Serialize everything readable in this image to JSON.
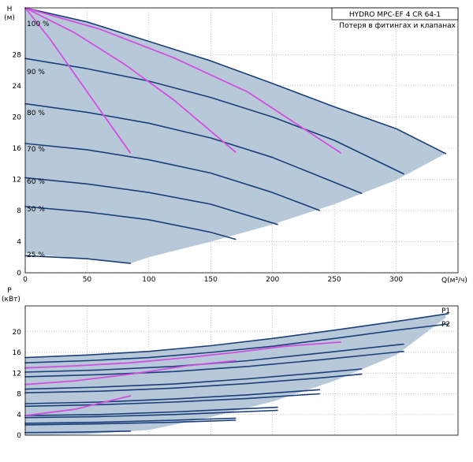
{
  "chart_data": [
    {
      "type": "line",
      "title": "HYDRO MPC-EF 4 CR 64-1",
      "subtitle": "Потеря в фитингах и клапанах",
      "xlabel": "Q(м³/ч)",
      "ylabel": "H",
      "yunit": "(м)",
      "xlim": [
        0,
        350
      ],
      "ylim": [
        0,
        34
      ],
      "xticks": [
        "0",
        "50",
        "100",
        "150",
        "200",
        "250",
        "300"
      ],
      "yticks": [
        "0",
        "4",
        "8",
        "12",
        "16",
        "20",
        "24",
        "28"
      ],
      "grid": true,
      "operating_area": {
        "upper_boundary": [
          [
            0,
            34
          ],
          [
            50,
            32.2
          ],
          [
            100,
            29.7
          ],
          [
            150,
            27.2
          ],
          [
            200,
            24.3
          ],
          [
            250,
            21.3
          ],
          [
            300,
            18.5
          ],
          [
            340,
            15.3
          ]
        ],
        "lower_boundary": [
          [
            340,
            15.3
          ],
          [
            300,
            11.9
          ],
          [
            250,
            8.8
          ],
          [
            200,
            6.2
          ],
          [
            150,
            4
          ],
          [
            100,
            2
          ],
          [
            85,
            1.2
          ],
          [
            60,
            1.6
          ],
          [
            20,
            2.2
          ],
          [
            0,
            2.5
          ]
        ]
      },
      "series": [
        {
          "name": "100 %",
          "color": "#1a3f7a",
          "x": [
            0,
            50,
            100,
            150,
            200,
            250,
            300,
            340
          ],
          "y": [
            34,
            32.2,
            29.7,
            27.2,
            24.3,
            21.3,
            18.5,
            15.3
          ]
        },
        {
          "name": "90 %",
          "color": "#1a3f7a",
          "x": [
            0,
            50,
            100,
            150,
            200,
            250,
            306
          ],
          "y": [
            27.5,
            26.2,
            24.6,
            22.5,
            20,
            17,
            12.7
          ]
        },
        {
          "name": "80 %",
          "color": "#1a3f7a",
          "x": [
            0,
            50,
            100,
            150,
            200,
            272
          ],
          "y": [
            21.7,
            20.6,
            19.2,
            17.3,
            14.8,
            10.2
          ]
        },
        {
          "name": "70 %",
          "color": "#1a3f7a",
          "x": [
            0,
            50,
            100,
            150,
            200,
            238
          ],
          "y": [
            16.6,
            15.8,
            14.5,
            12.8,
            10.3,
            8
          ]
        },
        {
          "name": "60 %",
          "color": "#1a3f7a",
          "x": [
            0,
            50,
            100,
            150,
            204
          ],
          "y": [
            12.2,
            11.4,
            10.3,
            8.8,
            6.2
          ]
        },
        {
          "name": "50 %",
          "color": "#1a3f7a",
          "x": [
            0,
            50,
            100,
            150,
            170
          ],
          "y": [
            8.5,
            7.8,
            6.8,
            5.2,
            4.3
          ]
        },
        {
          "name": "25 %",
          "color": "#1a3f7a",
          "x": [
            0,
            50,
            85
          ],
          "y": [
            2.2,
            1.8,
            1.2
          ]
        },
        {
          "name": "",
          "color": "#d14fe0",
          "x": [
            0,
            20,
            40,
            60,
            85
          ],
          "y": [
            34,
            30,
            25.5,
            21,
            15.4
          ]
        },
        {
          "name": "",
          "color": "#d14fe0",
          "x": [
            0,
            40,
            80,
            120,
            170
          ],
          "y": [
            34,
            30.8,
            26.8,
            22.2,
            15.5
          ]
        },
        {
          "name": "",
          "color": "#d14fe0",
          "x": [
            0,
            60,
            120,
            180,
            255
          ],
          "y": [
            34,
            31.3,
            27.6,
            23.2,
            15.4
          ]
        }
      ],
      "labels": [
        "100 %",
        "90 %",
        "80 %",
        "70 %",
        "60 %",
        "50 %",
        "25 %"
      ]
    },
    {
      "type": "line",
      "ylabel": "P",
      "yunit": "(кВт)",
      "xlim": [
        0,
        350
      ],
      "ylim": [
        0,
        25
      ],
      "yticks": [
        "0",
        "4",
        "8",
        "12",
        "16",
        "20"
      ],
      "grid": true,
      "operating_area": {
        "upper_boundary": [
          [
            0,
            15
          ],
          [
            50,
            15.5
          ],
          [
            100,
            16.2
          ],
          [
            150,
            17.3
          ],
          [
            200,
            18.7
          ],
          [
            250,
            20.3
          ],
          [
            300,
            22
          ],
          [
            340,
            23.5
          ]
        ],
        "lower_boundary": [
          [
            340,
            22.7
          ],
          [
            300,
            15.5
          ],
          [
            250,
            10.5
          ],
          [
            200,
            6.5
          ],
          [
            150,
            3.5
          ],
          [
            100,
            1
          ],
          [
            50,
            0.2
          ],
          [
            0,
            0
          ]
        ]
      },
      "series": [
        {
          "name": "P1",
          "color": "#1a3f7a",
          "x": [
            0,
            50,
            100,
            150,
            200,
            250,
            300,
            342
          ],
          "y": [
            15,
            15.5,
            16.2,
            17.3,
            18.7,
            20.3,
            22,
            23.5
          ]
        },
        {
          "name": "P2",
          "color": "#1a3f7a",
          "x": [
            0,
            50,
            100,
            150,
            200,
            250,
            300,
            342
          ],
          "y": [
            14,
            14.4,
            15,
            16,
            17.2,
            18.7,
            20.3,
            21.5
          ]
        },
        {
          "name": "",
          "color": "#1a3f7a",
          "x": [
            0,
            60,
            120,
            180,
            240,
            306
          ],
          "y": [
            12.2,
            12.6,
            13.3,
            14.4,
            15.9,
            17.6
          ]
        },
        {
          "name": "",
          "color": "#1a3f7a",
          "x": [
            0,
            60,
            120,
            180,
            240,
            306
          ],
          "y": [
            11.3,
            11.7,
            12.3,
            13.3,
            14.6,
            16.2
          ]
        },
        {
          "name": "",
          "color": "#1a3f7a",
          "x": [
            0,
            60,
            120,
            180,
            240,
            272
          ],
          "y": [
            8.9,
            9.3,
            9.9,
            10.9,
            12.1,
            12.8
          ]
        },
        {
          "name": "",
          "color": "#1a3f7a",
          "x": [
            0,
            60,
            120,
            180,
            240,
            272
          ],
          "y": [
            8.2,
            8.5,
            9.1,
            10,
            11.1,
            11.8
          ]
        },
        {
          "name": "",
          "color": "#1a3f7a",
          "x": [
            0,
            60,
            120,
            180,
            238
          ],
          "y": [
            6.1,
            6.4,
            7,
            7.8,
            8.8
          ]
        },
        {
          "name": "",
          "color": "#1a3f7a",
          "x": [
            0,
            60,
            120,
            180,
            238
          ],
          "y": [
            5.6,
            5.9,
            6.4,
            7.1,
            8
          ]
        },
        {
          "name": "",
          "color": "#1a3f7a",
          "x": [
            0,
            60,
            120,
            204
          ],
          "y": [
            3.8,
            4,
            4.5,
            5.4
          ]
        },
        {
          "name": "",
          "color": "#1a3f7a",
          "x": [
            0,
            60,
            120,
            204
          ],
          "y": [
            3.4,
            3.6,
            4,
            4.8
          ]
        },
        {
          "name": "",
          "color": "#1a3f7a",
          "x": [
            0,
            60,
            120,
            170
          ],
          "y": [
            2.3,
            2.5,
            2.9,
            3.3
          ]
        },
        {
          "name": "",
          "color": "#1a3f7a",
          "x": [
            0,
            60,
            120,
            170
          ],
          "y": [
            2,
            2.2,
            2.5,
            2.9
          ]
        },
        {
          "name": "",
          "color": "#1a3f7a",
          "x": [
            0,
            45,
            85
          ],
          "y": [
            0.5,
            0.6,
            0.8
          ]
        },
        {
          "name": "",
          "color": "#d14fe0",
          "x": [
            0,
            40,
            85,
            130,
            170,
            210,
            255
          ],
          "y": [
            13,
            13.4,
            14,
            15,
            16,
            17.2,
            18
          ]
        },
        {
          "name": "",
          "color": "#d14fe0",
          "x": [
            0,
            40,
            85,
            130,
            170
          ],
          "y": [
            9.8,
            10.5,
            11.8,
            13.4,
            14.4
          ]
        },
        {
          "name": "",
          "color": "#d14fe0",
          "x": [
            0,
            40,
            85
          ],
          "y": [
            3.8,
            5,
            7.6
          ]
        }
      ],
      "legend": [
        "P1",
        "P2"
      ]
    }
  ]
}
